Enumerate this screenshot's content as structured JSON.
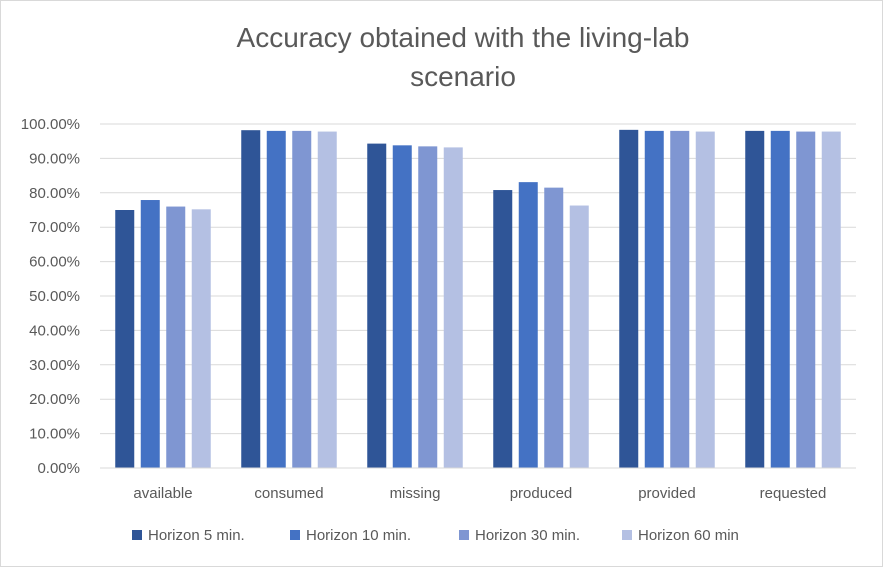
{
  "chart_data": {
    "type": "bar",
    "title": "Accuracy obtained with the living-lab scenario",
    "title_lines": [
      "Accuracy obtained with the living-lab",
      "scenario"
    ],
    "categories": [
      "available",
      "consumed",
      "missing",
      "produced",
      "provided",
      "requested"
    ],
    "series": [
      {
        "name": "Horizon 5 min.",
        "color": "#2f5597",
        "values": [
          75.0,
          98.2,
          94.3,
          80.8,
          98.3,
          98.0
        ]
      },
      {
        "name": "Horizon 10 min.",
        "color": "#4472c4",
        "values": [
          77.9,
          98.0,
          93.8,
          83.1,
          98.0,
          98.0
        ]
      },
      {
        "name": "Horizon 30 min.",
        "color": "#7f96d2",
        "values": [
          76.0,
          98.0,
          93.5,
          81.5,
          98.0,
          97.8
        ]
      },
      {
        "name": "Horizon 60 min",
        "color": "#b4c0e3",
        "values": [
          75.2,
          97.8,
          93.2,
          76.3,
          97.8,
          97.8
        ]
      }
    ],
    "ylim": [
      0,
      100
    ],
    "yticks": [
      "0.00%",
      "10.00%",
      "20.00%",
      "30.00%",
      "40.00%",
      "50.00%",
      "60.00%",
      "70.00%",
      "80.00%",
      "90.00%",
      "100.00%"
    ],
    "grid": true,
    "legend_position": "bottom",
    "xlabel": "",
    "ylabel": ""
  }
}
